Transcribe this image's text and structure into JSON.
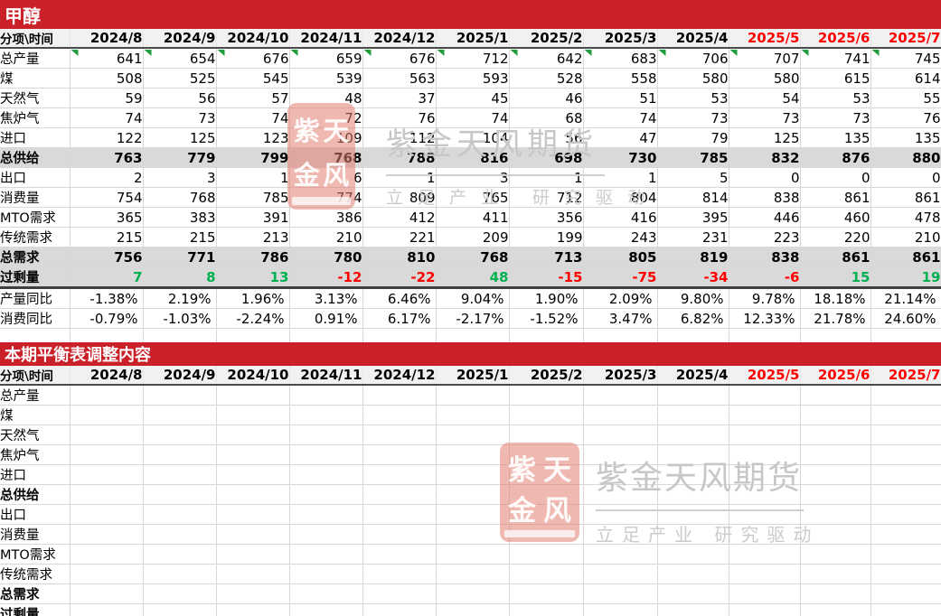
{
  "colors": {
    "accent_red": "#CA2128",
    "highlight_red": "#FF0000",
    "positive_green": "#00B050",
    "negative_red": "#FF0000",
    "triangle_green": "#1F9E3C",
    "band_gray": "#D9D9D9"
  },
  "watermark": {
    "seal_chars": [
      "紫",
      "天",
      "金",
      "风"
    ],
    "title": "紫金天风期货",
    "tagline": "立足产业 研究驱动"
  },
  "table1": {
    "title": "甲醇",
    "corner_label": "分项\\时间",
    "columns": [
      {
        "label": "2024/8"
      },
      {
        "label": "2024/9"
      },
      {
        "label": "2024/10"
      },
      {
        "label": "2024/11"
      },
      {
        "label": "2024/12"
      },
      {
        "label": "2025/1"
      },
      {
        "label": "2025/2"
      },
      {
        "label": "2025/3"
      },
      {
        "label": "2025/4"
      },
      {
        "label": "2025/5",
        "highlight": true
      },
      {
        "label": "2025/6",
        "highlight": true
      },
      {
        "label": "2025/7",
        "highlight": true
      }
    ],
    "rows": [
      {
        "label": "总产量",
        "cls": "tri",
        "values": [
          "641",
          "654",
          "676",
          "659",
          "676",
          "712",
          "642",
          "683",
          "706",
          "707",
          "741",
          "745"
        ]
      },
      {
        "label": "煤",
        "values": [
          "508",
          "525",
          "545",
          "539",
          "563",
          "593",
          "528",
          "558",
          "580",
          "580",
          "615",
          "614"
        ]
      },
      {
        "label": "天然气",
        "values": [
          "59",
          "56",
          "57",
          "48",
          "37",
          "45",
          "46",
          "51",
          "53",
          "54",
          "53",
          "55"
        ]
      },
      {
        "label": "焦炉气",
        "values": [
          "74",
          "73",
          "74",
          "72",
          "76",
          "74",
          "68",
          "74",
          "73",
          "73",
          "73",
          "76"
        ]
      },
      {
        "label": "进口",
        "values": [
          "122",
          "125",
          "123",
          "109",
          "112",
          "104",
          "56",
          "47",
          "79",
          "125",
          "135",
          "135"
        ]
      },
      {
        "label": "总供给",
        "cls": "total",
        "values": [
          "763",
          "779",
          "799",
          "768",
          "788",
          "816",
          "698",
          "730",
          "785",
          "832",
          "876",
          "880"
        ]
      },
      {
        "label": "出口",
        "values": [
          "2",
          "3",
          "1",
          "6",
          "1",
          "3",
          "1",
          "1",
          "5",
          "0",
          "0",
          "0"
        ]
      },
      {
        "label": "消费量",
        "values": [
          "754",
          "768",
          "785",
          "774",
          "809",
          "765",
          "712",
          "804",
          "814",
          "838",
          "861",
          "861"
        ]
      },
      {
        "label": "MTO需求",
        "values": [
          "365",
          "383",
          "391",
          "386",
          "412",
          "411",
          "356",
          "416",
          "395",
          "446",
          "460",
          "478"
        ]
      },
      {
        "label": "传统需求",
        "values": [
          "215",
          "215",
          "213",
          "210",
          "221",
          "209",
          "199",
          "243",
          "231",
          "223",
          "220",
          "210"
        ]
      },
      {
        "label": "总需求",
        "cls": "total",
        "values": [
          "756",
          "771",
          "786",
          "780",
          "810",
          "768",
          "713",
          "805",
          "819",
          "838",
          "861",
          "861"
        ]
      },
      {
        "label": "过剩量",
        "cls": "total sep",
        "values": [
          "7",
          "8",
          "13",
          "-12",
          "-22",
          "48",
          "-15",
          "-75",
          "-34",
          "-6",
          "15",
          "19"
        ],
        "colors": [
          "pos",
          "pos",
          "pos",
          "neg",
          "neg",
          "pos",
          "neg",
          "neg",
          "neg",
          "neg",
          "pos",
          "pos"
        ]
      },
      {
        "label": "产量同比",
        "cls": "pct",
        "values": [
          "-1.38%",
          "2.19%",
          "1.96%",
          "3.13%",
          "6.46%",
          "9.04%",
          "1.90%",
          "2.09%",
          "9.80%",
          "9.78%",
          "18.18%",
          "21.14%"
        ]
      },
      {
        "label": "消费同比",
        "cls": "pct",
        "values": [
          "-0.79%",
          "-1.03%",
          "-2.24%",
          "0.91%",
          "6.17%",
          "-2.17%",
          "-1.52%",
          "3.47%",
          "6.82%",
          "12.33%",
          "21.78%",
          "24.60%"
        ]
      }
    ]
  },
  "table2": {
    "title": "本期平衡表调整内容",
    "corner_label": "分项\\时间",
    "columns": [
      {
        "label": "2024/8"
      },
      {
        "label": "2024/9"
      },
      {
        "label": "2024/10"
      },
      {
        "label": "2024/11"
      },
      {
        "label": "2024/12"
      },
      {
        "label": "2025/1"
      },
      {
        "label": "2025/2"
      },
      {
        "label": "2025/3"
      },
      {
        "label": "2025/4"
      },
      {
        "label": "2025/5",
        "highlight": true
      },
      {
        "label": "2025/6",
        "highlight": true
      },
      {
        "label": "2025/7",
        "highlight": true
      }
    ],
    "rows": [
      {
        "label": "总产量",
        "values": [
          "",
          "",
          "",
          "",
          "",
          "",
          "",
          "",
          "",
          "",
          "",
          ""
        ]
      },
      {
        "label": "煤",
        "values": [
          "",
          "",
          "",
          "",
          "",
          "",
          "",
          "",
          "",
          "",
          "",
          ""
        ]
      },
      {
        "label": "天然气",
        "values": [
          "",
          "",
          "",
          "",
          "",
          "",
          "",
          "",
          "",
          "",
          "",
          ""
        ]
      },
      {
        "label": "焦炉气",
        "values": [
          "",
          "",
          "",
          "",
          "",
          "",
          "",
          "",
          "",
          "",
          "",
          ""
        ]
      },
      {
        "label": "进口",
        "values": [
          "",
          "",
          "",
          "",
          "",
          "",
          "",
          "",
          "",
          "",
          "",
          ""
        ]
      },
      {
        "label": "总供给",
        "cls": "bold",
        "values": [
          "",
          "",
          "",
          "",
          "",
          "",
          "",
          "",
          "",
          "",
          "",
          ""
        ]
      },
      {
        "label": "出口",
        "values": [
          "",
          "",
          "",
          "",
          "",
          "",
          "",
          "",
          "",
          "",
          "",
          ""
        ]
      },
      {
        "label": "消费量",
        "values": [
          "",
          "",
          "",
          "",
          "",
          "",
          "",
          "",
          "",
          "",
          "",
          ""
        ]
      },
      {
        "label": "MTO需求",
        "values": [
          "",
          "",
          "",
          "",
          "",
          "",
          "",
          "",
          "",
          "",
          "",
          ""
        ]
      },
      {
        "label": "传统需求",
        "values": [
          "",
          "",
          "",
          "",
          "",
          "",
          "",
          "",
          "",
          "",
          "",
          ""
        ]
      },
      {
        "label": "总需求",
        "cls": "bold",
        "values": [
          "",
          "",
          "",
          "",
          "",
          "",
          "",
          "",
          "",
          "",
          "",
          ""
        ]
      },
      {
        "label": "过剩量",
        "cls": "bold",
        "values": [
          "",
          "",
          "",
          "",
          "",
          "",
          "",
          "",
          "",
          "",
          "",
          ""
        ]
      }
    ]
  }
}
